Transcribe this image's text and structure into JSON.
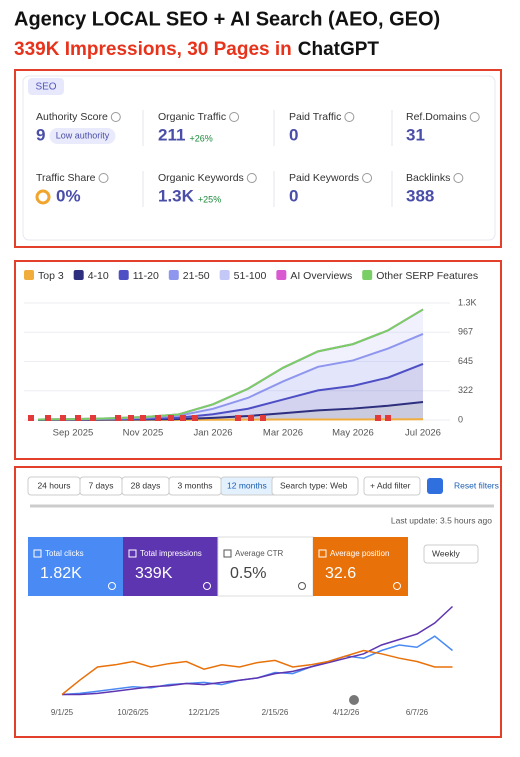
{
  "header": {
    "title": "Agency LOCAL SEO + AI Search (AEO, GEO)",
    "subtitle_highlight": "339K Impressions, 30 Pages in",
    "subtitle_rest": "ChatGPT"
  },
  "seo_overview": {
    "label": "SEO",
    "metrics": [
      {
        "label": "Authority Score",
        "value": 9,
        "badge": "Low authority"
      },
      {
        "label": "Organic Traffic",
        "value": 211,
        "change": "+26%"
      },
      {
        "label": "Paid Traffic",
        "value": 0
      },
      {
        "label": "Ref.Domains",
        "value": 31
      },
      {
        "label": "Traffic Share",
        "value": "0%"
      },
      {
        "label": "Organic Keywords",
        "value": "1.3K",
        "change": "+25%"
      },
      {
        "label": "Paid Keywords",
        "value": 0
      },
      {
        "label": "Backlinks",
        "value": 388
      }
    ]
  },
  "keyword_chart": {
    "type": "area",
    "stacked": true,
    "categories": [
      null,
      "Sep 2025",
      null,
      "Nov 2025",
      null,
      "Jan 2026",
      null,
      "Mar 2026",
      null,
      "May 2026",
      null,
      "Jul 2026"
    ],
    "ylim": [
      0,
      1300
    ],
    "yticks": [
      0,
      322,
      645,
      967,
      {
        "value": 1289,
        "label": "1.3K"
      }
    ],
    "series": [
      {
        "name": "Top 3",
        "color": "#f0ad3c",
        "values": [
          0,
          0,
          1,
          1,
          2,
          3,
          4,
          5,
          6,
          6,
          7,
          8
        ]
      },
      {
        "name": "4-10",
        "color": "#2d2f7e",
        "values": [
          1,
          2,
          3,
          5,
          8,
          20,
          40,
          70,
          100,
          120,
          150,
          190
        ]
      },
      {
        "name": "11-20",
        "color": "#4e4fc4",
        "values": [
          2,
          3,
          5,
          8,
          15,
          40,
          80,
          150,
          220,
          250,
          310,
          420
        ]
      },
      {
        "name": "21-50",
        "color": "#8f96ee",
        "values": [
          2,
          3,
          5,
          10,
          20,
          60,
          120,
          200,
          260,
          280,
          320,
          330
        ]
      },
      {
        "name": "51-100",
        "color": "#c3c8f7",
        "values": [
          1,
          2,
          4,
          8,
          15,
          50,
          100,
          150,
          170,
          180,
          200,
          270
        ]
      },
      {
        "name": "AI Overviews",
        "color": "#d95ad0",
        "values": [
          0,
          0,
          0,
          0,
          0,
          0,
          0,
          0,
          0,
          0,
          0,
          0
        ]
      },
      {
        "name": "Other SERP Features",
        "color": "#79cf66",
        "values": [
          0,
          0,
          0,
          0,
          0,
          0,
          0,
          0,
          0,
          0,
          0,
          0
        ]
      }
    ]
  },
  "search_console": {
    "ranges": [
      "24 hours",
      "7 days",
      "28 days",
      "3 months",
      "12 months"
    ],
    "search_type": "Search type: Web",
    "add_filter": "+ Add filter",
    "reset": "Reset filters",
    "last_update": "Last update: 3.5 hours ago",
    "cards": [
      {
        "label": "Total clicks",
        "value": "1.82K",
        "color": "#4a8af4"
      },
      {
        "label": "Total impressions",
        "value": "339K",
        "color": "#5e35b1"
      },
      {
        "label": "Average CTR",
        "value": "0.5%",
        "color": "#ffffff"
      },
      {
        "label": "Average position",
        "value": "32.6",
        "color": "#e8710a"
      }
    ],
    "interval": "Weekly",
    "chart": {
      "type": "line",
      "categories": [
        "9/1/25",
        null,
        null,
        null,
        "10/26/25",
        null,
        null,
        null,
        "12/21/25",
        null,
        null,
        null,
        "2/15/26",
        null,
        null,
        null,
        "4/12/26",
        null,
        null,
        null,
        "6/7/26",
        null,
        null
      ],
      "series": [
        {
          "name": "Total clicks",
          "color": "#4a8af4",
          "values": [
            5,
            6,
            8,
            10,
            12,
            11,
            14,
            15,
            16,
            14,
            18,
            20,
            25,
            24,
            30,
            35,
            40,
            38,
            45,
            50,
            48,
            58,
            45
          ]
        },
        {
          "name": "Total impressions",
          "color": "#5e35b1",
          "values": [
            5,
            5,
            6,
            8,
            10,
            12,
            13,
            15,
            14,
            16,
            18,
            20,
            24,
            26,
            30,
            34,
            38,
            42,
            50,
            55,
            60,
            70,
            85
          ]
        },
        {
          "name": "Average position",
          "color": "#e8710a",
          "values": [
            5,
            18,
            30,
            32,
            35,
            30,
            33,
            35,
            28,
            32,
            30,
            34,
            36,
            30,
            32,
            35,
            40,
            45,
            42,
            38,
            35,
            30,
            30
          ]
        }
      ]
    }
  }
}
